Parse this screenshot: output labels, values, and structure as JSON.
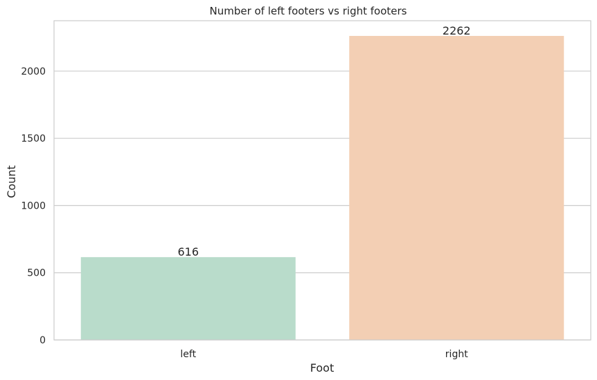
{
  "chart_data": {
    "type": "bar",
    "title": "Number of left footers vs right footers",
    "xlabel": "Foot",
    "ylabel": "Count",
    "categories": [
      "left",
      "right"
    ],
    "values": [
      616,
      2262
    ],
    "data_labels": [
      "616",
      "2262"
    ],
    "ylim": [
      0,
      2375
    ],
    "yticks": [
      0,
      500,
      1000,
      1500,
      2000
    ],
    "ytick_labels": [
      "0",
      "500",
      "1000",
      "1500",
      "2000"
    ],
    "colors": [
      "#b9dccb",
      "#f3cfb4"
    ],
    "grid": "horizontal",
    "background": "#ffffff",
    "gridline_color": "#cccccc",
    "spine_color": "#cccccc"
  }
}
